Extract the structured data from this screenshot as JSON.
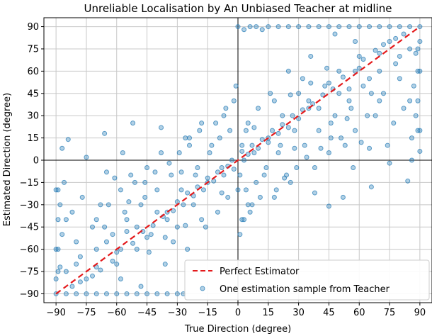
{
  "chart_data": {
    "type": "scatter",
    "title": "Unreliable Localisation by An Unbiased Teacher at midline",
    "xlabel": "True Direction (degree)",
    "ylabel": "Estimated Direction (degree)",
    "xlim": [
      -96,
      96
    ],
    "ylim": [
      -96,
      96
    ],
    "x_ticks": [
      -90,
      -75,
      -60,
      -45,
      -30,
      -15,
      0,
      15,
      30,
      45,
      60,
      75,
      90
    ],
    "y_ticks": [
      -90,
      -75,
      -60,
      -45,
      -30,
      -15,
      0,
      15,
      30,
      45,
      60,
      75,
      90
    ],
    "x_tick_labels": [
      "−90",
      "−75",
      "−60",
      "−45",
      "−30",
      "−15",
      "0",
      "15",
      "30",
      "45",
      "60",
      "75",
      "90"
    ],
    "y_tick_labels": [
      "−90",
      "−75",
      "−60",
      "−45",
      "−30",
      "−15",
      "0",
      "15",
      "30",
      "45",
      "60",
      "75",
      "90"
    ],
    "grid": true,
    "reference_lines": {
      "x": 0,
      "y": 0
    },
    "legend_position": "lower-right",
    "series": [
      {
        "name": "Perfect Estimator",
        "type": "line",
        "style": "dashed",
        "color": "#e41a1c",
        "x": [
          -90,
          90
        ],
        "y": [
          -90,
          90
        ]
      },
      {
        "name": "One estimation sample from Teacher",
        "type": "scatter",
        "color": "#1f77b4",
        "points": [
          [
            -90,
            -90
          ],
          [
            -85,
            -90
          ],
          [
            -80,
            -90
          ],
          [
            -75,
            -90
          ],
          [
            -70,
            -90
          ],
          [
            -65,
            -90
          ],
          [
            -60,
            -90
          ],
          [
            -55,
            -90
          ],
          [
            -50,
            -90
          ],
          [
            -45,
            -90
          ],
          [
            -40,
            -90
          ],
          [
            -35,
            -90
          ],
          [
            -30,
            -90
          ],
          [
            -27,
            -90
          ],
          [
            -90,
            -80
          ],
          [
            -88,
            -72
          ],
          [
            -90,
            -60
          ],
          [
            -87,
            -50
          ],
          [
            -85,
            -40
          ],
          [
            -88,
            -30
          ],
          [
            -90,
            -20
          ],
          [
            -86,
            -15
          ],
          [
            -87,
            8
          ],
          [
            -82,
            -35
          ],
          [
            -80,
            -55
          ],
          [
            -78,
            -65
          ],
          [
            -77,
            -25
          ],
          [
            -75,
            2
          ],
          [
            -72,
            -45
          ],
          [
            -70,
            -60
          ],
          [
            -68,
            -30
          ],
          [
            -65,
            -8
          ],
          [
            -62,
            -50
          ],
          [
            -60,
            -70
          ],
          [
            -58,
            -20
          ],
          [
            -55,
            -40
          ],
          [
            -53,
            -10
          ],
          [
            -50,
            -60
          ],
          [
            -48,
            -30
          ],
          [
            -45,
            -5
          ],
          [
            -43,
            -50
          ],
          [
            -40,
            -20
          ],
          [
            -38,
            5
          ],
          [
            -36,
            -70
          ],
          [
            -35,
            -35
          ],
          [
            -33,
            -10
          ],
          [
            -30,
            -45
          ],
          [
            -28,
            -20
          ],
          [
            -26,
            15
          ],
          [
            -25,
            -60
          ],
          [
            -22,
            -30
          ],
          [
            -20,
            -5
          ],
          [
            -18,
            25
          ],
          [
            -16,
            -45
          ],
          [
            -15,
            -15
          ],
          [
            -13,
            10
          ],
          [
            -10,
            -35
          ],
          [
            -8,
            -5
          ],
          [
            -7,
            30
          ],
          [
            -5,
            -25
          ],
          [
            -3,
            0
          ],
          [
            -2,
            40
          ],
          [
            0,
            -20
          ],
          [
            2,
            10
          ],
          [
            3,
            -40
          ],
          [
            -85,
            -75
          ],
          [
            -80,
            -70
          ],
          [
            -75,
            -80
          ],
          [
            -70,
            -72
          ],
          [
            -65,
            -55
          ],
          [
            -60,
            -62
          ],
          [
            -55,
            -48
          ],
          [
            -50,
            -45
          ],
          [
            -45,
            -52
          ],
          [
            -40,
            -35
          ],
          [
            -35,
            -40
          ],
          [
            -30,
            -28
          ],
          [
            -25,
            -22
          ],
          [
            -20,
            -18
          ],
          [
            -15,
            -12
          ],
          [
            -10,
            -8
          ],
          [
            -5,
            -4
          ],
          [
            -82,
            -85
          ],
          [
            -78,
            -82
          ],
          [
            -72,
            -78
          ],
          [
            -68,
            -74
          ],
          [
            -62,
            -68
          ],
          [
            -58,
            -60
          ],
          [
            -52,
            -56
          ],
          [
            -47,
            -48
          ],
          [
            -42,
            -44
          ],
          [
            -37,
            -38
          ],
          [
            -32,
            -34
          ],
          [
            -27,
            -30
          ],
          [
            -22,
            -24
          ],
          [
            -17,
            -20
          ],
          [
            -12,
            -14
          ],
          [
            -7,
            -10
          ],
          [
            -2,
            -6
          ],
          [
            -64,
            -30
          ],
          [
            -61,
            -12
          ],
          [
            -57,
            5
          ],
          [
            -54,
            -28
          ],
          [
            -51,
            -15
          ],
          [
            -46,
            -25
          ],
          [
            -41,
            -8
          ],
          [
            -34,
            -2
          ],
          [
            -29,
            5
          ],
          [
            -24,
            10
          ],
          [
            -21,
            -10
          ],
          [
            -19,
            20
          ],
          [
            -14,
            5
          ],
          [
            -11,
            25
          ],
          [
            -9,
            15
          ],
          [
            -6,
            35
          ],
          [
            -4,
            20
          ],
          [
            -1,
            50
          ],
          [
            1,
            -10
          ],
          [
            4,
            20
          ],
          [
            5,
            -30
          ],
          [
            15,
            90
          ],
          [
            20,
            90
          ],
          [
            25,
            90
          ],
          [
            30,
            90
          ],
          [
            35,
            90
          ],
          [
            40,
            90
          ],
          [
            45,
            90
          ],
          [
            50,
            90
          ],
          [
            55,
            90
          ],
          [
            60,
            90
          ],
          [
            65,
            90
          ],
          [
            70,
            90
          ],
          [
            75,
            90
          ],
          [
            80,
            90
          ],
          [
            85,
            90
          ],
          [
            90,
            90
          ],
          [
            0,
            90
          ],
          [
            3,
            88
          ],
          [
            6,
            90
          ],
          [
            9,
            90
          ],
          [
            12,
            88
          ],
          [
            90,
            80
          ],
          [
            88,
            72
          ],
          [
            90,
            60
          ],
          [
            87,
            50
          ],
          [
            85,
            40
          ],
          [
            88,
            30
          ],
          [
            90,
            20
          ],
          [
            86,
            15
          ],
          [
            90,
            6
          ],
          [
            82,
            35
          ],
          [
            80,
            55
          ],
          [
            78,
            65
          ],
          [
            77,
            25
          ],
          [
            75,
            -2
          ],
          [
            74,
            10
          ],
          [
            72,
            45
          ],
          [
            70,
            60
          ],
          [
            68,
            30
          ],
          [
            65,
            8
          ],
          [
            62,
            50
          ],
          [
            60,
            70
          ],
          [
            58,
            20
          ],
          [
            55,
            40
          ],
          [
            53,
            10
          ],
          [
            50,
            60
          ],
          [
            48,
            30
          ],
          [
            45,
            5
          ],
          [
            45,
            -31
          ],
          [
            43,
            50
          ],
          [
            40,
            20
          ],
          [
            38,
            -5
          ],
          [
            36,
            70
          ],
          [
            35,
            35
          ],
          [
            33,
            10
          ],
          [
            30,
            45
          ],
          [
            28,
            20
          ],
          [
            26,
            -15
          ],
          [
            25,
            60
          ],
          [
            22,
            30
          ],
          [
            20,
            5
          ],
          [
            18,
            -25
          ],
          [
            16,
            45
          ],
          [
            15,
            15
          ],
          [
            13,
            -10
          ],
          [
            10,
            35
          ],
          [
            8,
            5
          ],
          [
            7,
            -30
          ],
          [
            5,
            25
          ],
          [
            3,
            0
          ],
          [
            2,
            -40
          ],
          [
            85,
            75
          ],
          [
            80,
            70
          ],
          [
            75,
            80
          ],
          [
            70,
            72
          ],
          [
            65,
            55
          ],
          [
            60,
            62
          ],
          [
            55,
            48
          ],
          [
            50,
            45
          ],
          [
            45,
            52
          ],
          [
            40,
            35
          ],
          [
            35,
            40
          ],
          [
            30,
            28
          ],
          [
            25,
            22
          ],
          [
            20,
            18
          ],
          [
            15,
            12
          ],
          [
            10,
            8
          ],
          [
            5,
            4
          ],
          [
            82,
            85
          ],
          [
            78,
            82
          ],
          [
            72,
            78
          ],
          [
            68,
            74
          ],
          [
            62,
            68
          ],
          [
            58,
            60
          ],
          [
            52,
            56
          ],
          [
            47,
            48
          ],
          [
            42,
            44
          ],
          [
            37,
            38
          ],
          [
            32,
            34
          ],
          [
            27,
            30
          ],
          [
            22,
            24
          ],
          [
            17,
            20
          ],
          [
            12,
            14
          ],
          [
            7,
            10
          ],
          [
            2,
            6
          ],
          [
            64,
            30
          ],
          [
            61,
            12
          ],
          [
            57,
            -5
          ],
          [
            54,
            28
          ],
          [
            51,
            15
          ],
          [
            46,
            25
          ],
          [
            41,
            8
          ],
          [
            34,
            2
          ],
          [
            29,
            -5
          ],
          [
            24,
            -10
          ],
          [
            21,
            10
          ],
          [
            19,
            -20
          ],
          [
            14,
            -5
          ],
          [
            11,
            -25
          ],
          [
            9,
            -15
          ],
          [
            6,
            -35
          ],
          [
            4,
            -20
          ],
          [
            1,
            -50
          ],
          [
            86,
            0
          ],
          [
            84,
            -14
          ],
          [
            66,
            -18
          ],
          [
            52,
            -25
          ],
          [
            38,
            -22
          ],
          [
            23,
            -12
          ],
          [
            -24,
            15
          ],
          [
            -38,
            22
          ],
          [
            -52,
            25
          ],
          [
            -66,
            18
          ],
          [
            -84,
            14
          ],
          [
            -89,
            -60
          ],
          [
            -89,
            -40
          ],
          [
            -89,
            -20
          ],
          [
            -89,
            -75
          ],
          [
            89,
            75
          ],
          [
            89,
            60
          ],
          [
            89,
            40
          ],
          [
            89,
            20
          ],
          [
            -66,
            -45
          ],
          [
            -44,
            -62
          ],
          [
            -32,
            -55
          ],
          [
            -18,
            -40
          ],
          [
            -8,
            -22
          ],
          [
            8,
            22
          ],
          [
            18,
            40
          ],
          [
            32,
            55
          ],
          [
            44,
            62
          ],
          [
            66,
            45
          ],
          [
            -70,
            -40
          ],
          [
            -56,
            -35
          ],
          [
            -46,
            -15
          ],
          [
            -28,
            -8
          ],
          [
            28,
            8
          ],
          [
            46,
            15
          ],
          [
            56,
            35
          ],
          [
            70,
            40
          ],
          [
            -58,
            -80
          ],
          [
            -48,
            -85
          ],
          [
            58,
            80
          ],
          [
            48,
            85
          ],
          [
            -36,
            -52
          ],
          [
            -26,
            -44
          ],
          [
            26,
            44
          ],
          [
            36,
            52
          ]
        ]
      }
    ]
  }
}
